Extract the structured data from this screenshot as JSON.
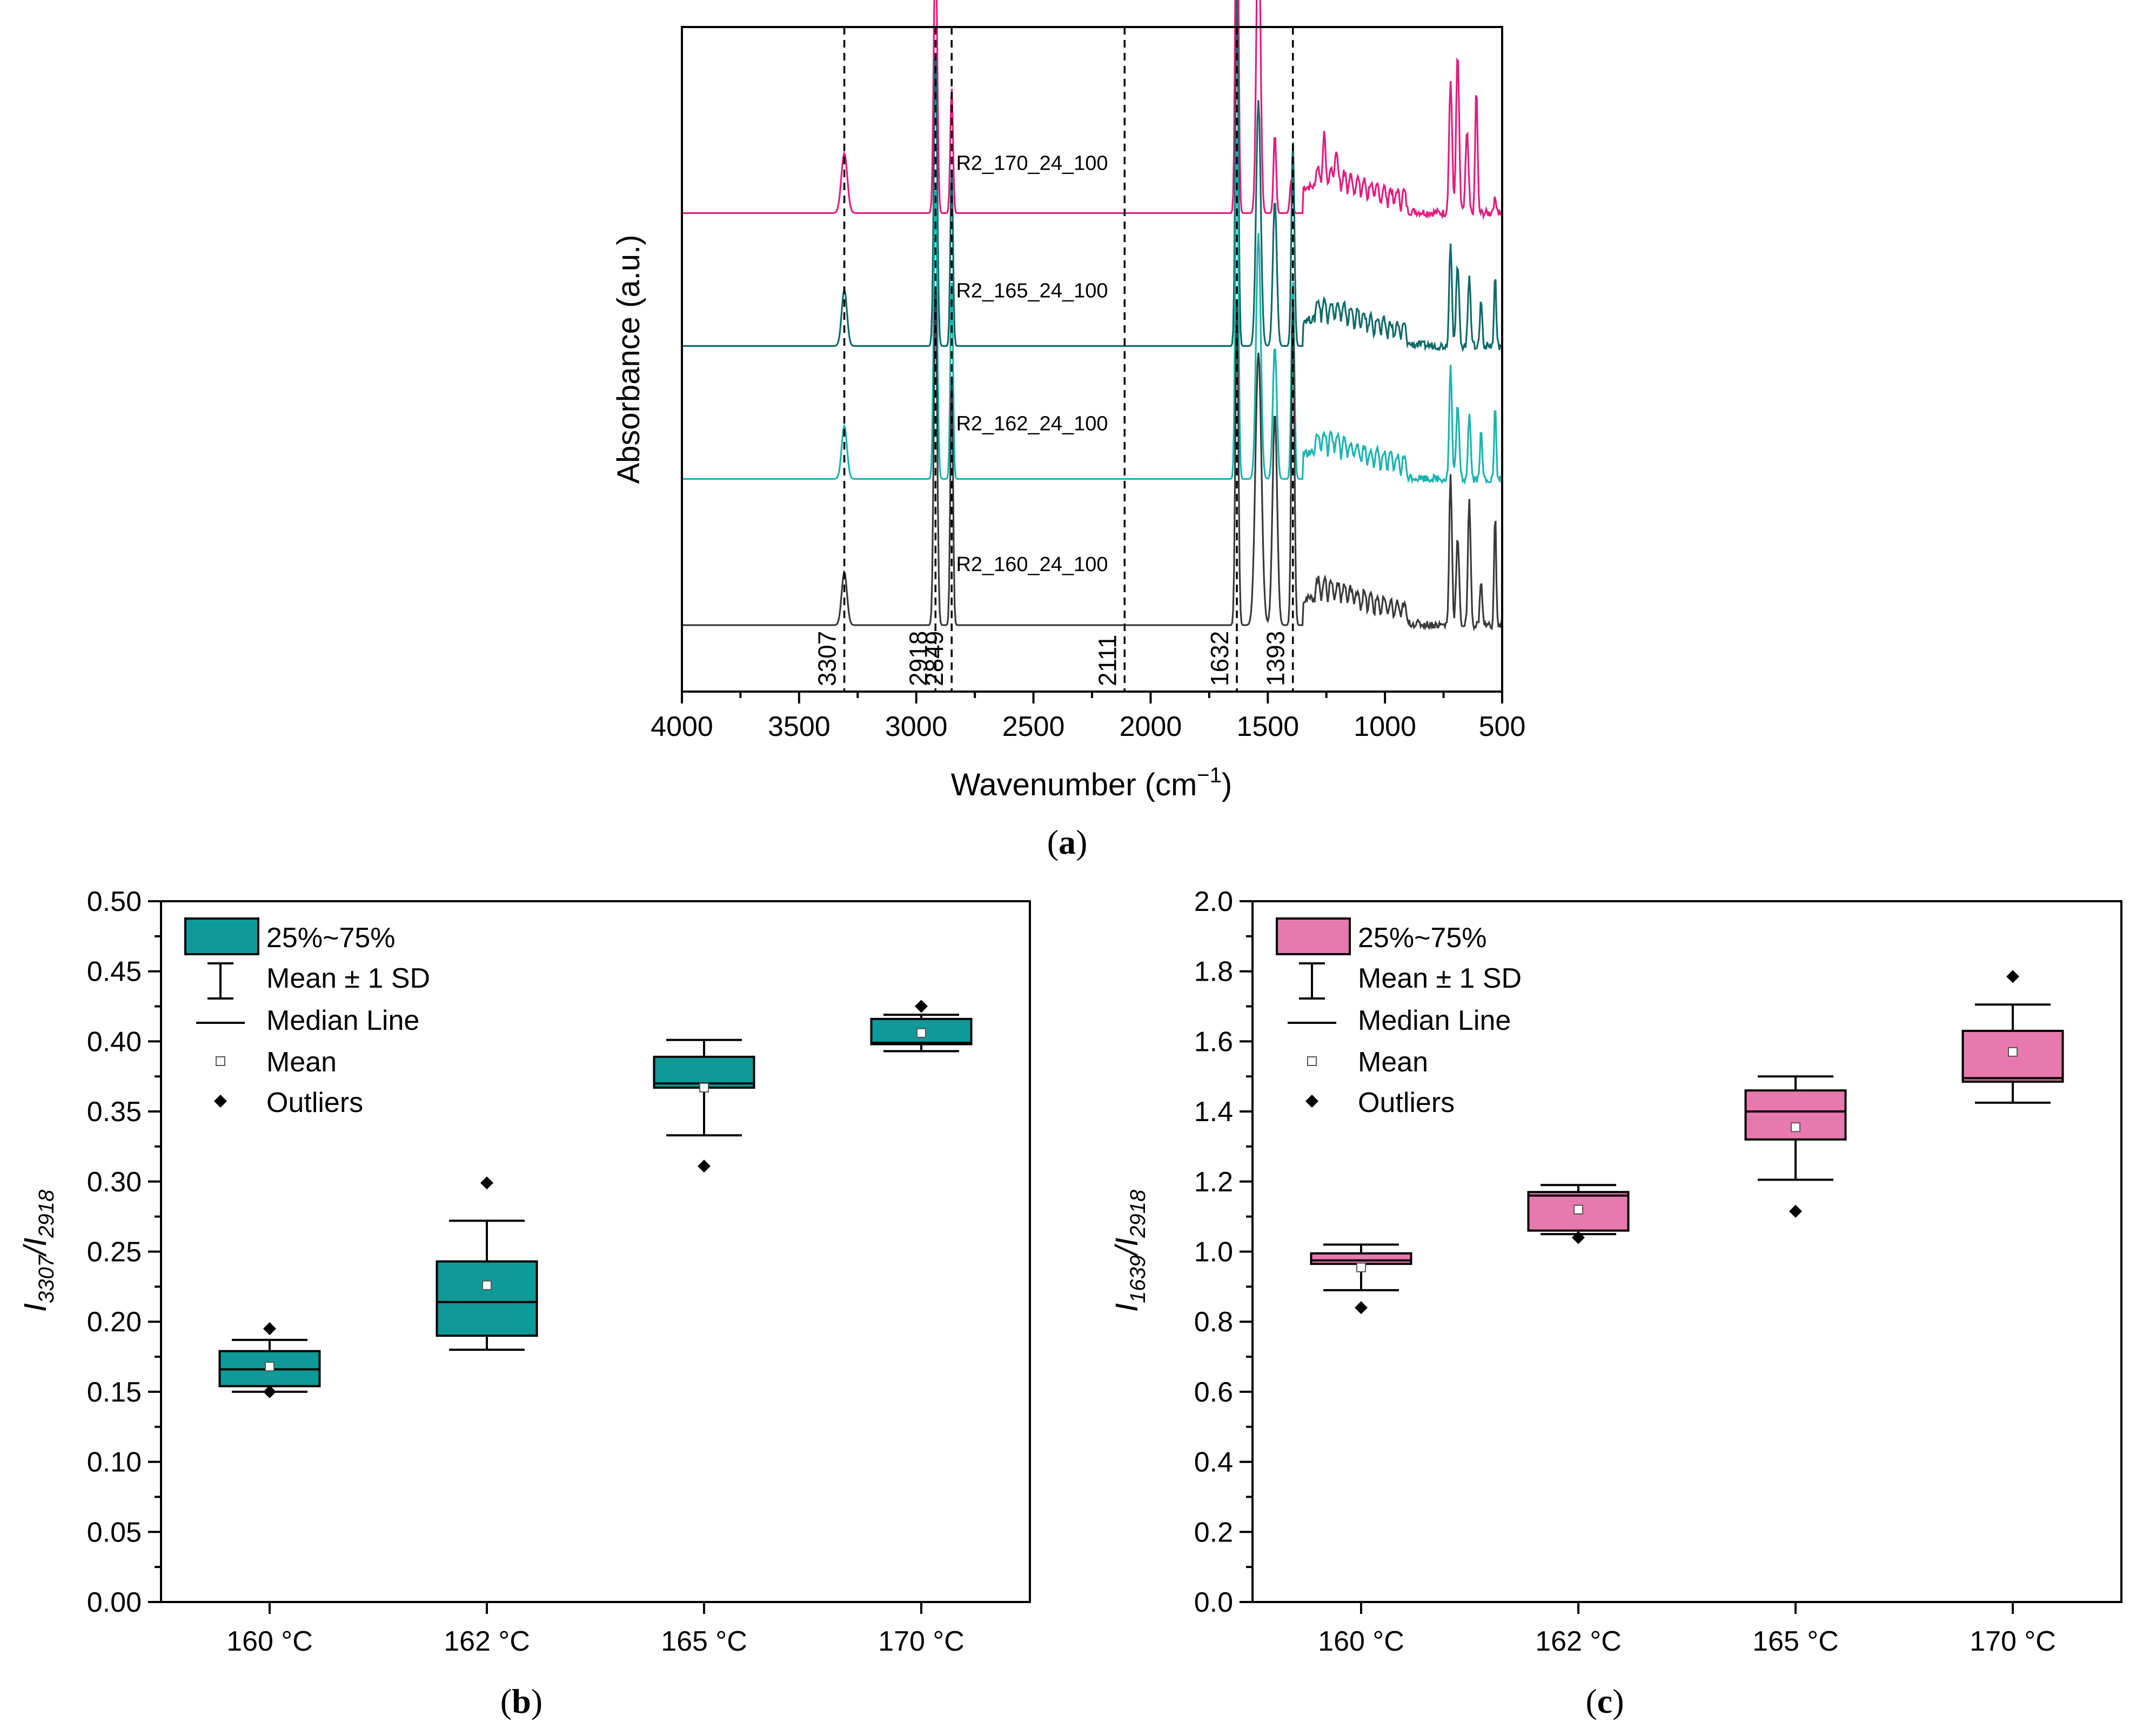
{
  "chart_data": [
    {
      "panel": "(a)",
      "panel_letter": "a",
      "type": "line",
      "title": "",
      "xlabel": "Wavenumber (cm",
      "xlabel_sup": "−1",
      "xlabel_close": ")",
      "ylabel": "Absorbance (a.u.)",
      "xlim": [
        4000,
        500
      ],
      "x_ticks": [
        "4000",
        "3500",
        "3000",
        "2500",
        "2000",
        "1500",
        "1000",
        "500"
      ],
      "x_tick_values": [
        4000,
        3500,
        3000,
        2500,
        2000,
        1500,
        1000,
        500
      ],
      "reference_lines": [
        3307,
        2918,
        2849,
        2111,
        1632,
        1393
      ],
      "reference_labels": [
        "3307",
        "2918",
        "2849",
        "2111",
        "1632",
        "1393"
      ],
      "series": [
        {
          "name": "R2_170_24_100",
          "color": "#E8197D",
          "baseline": 0.72,
          "peaks": [
            [
              3307,
              0.09,
              18
            ],
            [
              2918,
              0.43,
              10
            ],
            [
              2849,
              0.19,
              8
            ],
            [
              1632,
              0.6,
              9
            ],
            [
              1540,
              0.48,
              12
            ],
            [
              1470,
              0.12,
              8
            ],
            [
              1400,
              0.05,
              8
            ],
            [
              1260,
              0.05,
              8
            ],
            [
              1210,
              0.04,
              8
            ],
            [
              720,
              0.2,
              9
            ],
            [
              690,
              0.24,
              9
            ],
            [
              650,
              0.12,
              9
            ],
            [
              610,
              0.19,
              7
            ],
            [
              530,
              0.02,
              10
            ]
          ]
        },
        {
          "name": "R2_165_24_100",
          "color": "#0F6B69",
          "baseline": 0.52,
          "peaks": [
            [
              3307,
              0.085,
              16
            ],
            [
              2918,
              0.45,
              10
            ],
            [
              2849,
              0.27,
              8
            ],
            [
              1632,
              0.53,
              9
            ],
            [
              1540,
              0.37,
              14
            ],
            [
              1470,
              0.22,
              12
            ],
            [
              1393,
              0.31,
              9
            ],
            [
              720,
              0.16,
              8
            ],
            [
              690,
              0.12,
              9
            ],
            [
              640,
              0.11,
              8
            ],
            [
              590,
              0.07,
              7
            ],
            [
              530,
              0.11,
              6
            ]
          ]
        },
        {
          "name": "R2_162_24_100",
          "color": "#18B5B1",
          "baseline": 0.32,
          "peaks": [
            [
              3307,
              0.08,
              16
            ],
            [
              2918,
              0.45,
              10
            ],
            [
              2849,
              0.3,
              8
            ],
            [
              1632,
              0.52,
              9
            ],
            [
              1540,
              0.37,
              14
            ],
            [
              1470,
              0.2,
              12
            ],
            [
              1393,
              0.3,
              9
            ],
            [
              720,
              0.17,
              8
            ],
            [
              690,
              0.11,
              9
            ],
            [
              640,
              0.1,
              8
            ],
            [
              590,
              0.07,
              7
            ],
            [
              530,
              0.11,
              6
            ]
          ]
        },
        {
          "name": "R2_160_24_100",
          "color": "#3A3A3A",
          "baseline": 0.1,
          "peaks": [
            [
              3307,
              0.08,
              16
            ],
            [
              2918,
              0.52,
              10
            ],
            [
              2849,
              0.38,
              8
            ],
            [
              1632,
              0.49,
              9
            ],
            [
              1540,
              0.41,
              18
            ],
            [
              1470,
              0.32,
              14
            ],
            [
              1393,
              0.49,
              9
            ],
            [
              720,
              0.23,
              8
            ],
            [
              690,
              0.13,
              9
            ],
            [
              640,
              0.19,
              8
            ],
            [
              590,
              0.07,
              7
            ],
            [
              530,
              0.17,
              6
            ]
          ]
        }
      ]
    },
    {
      "panel": "(b)",
      "panel_letter": "b",
      "type": "box",
      "title": "",
      "xlabel": "",
      "ylabel_base": "I",
      "ylabel_sub1": "3307",
      "ylabel_sep": "/I",
      "ylabel_sub2": "2918",
      "color": "#0E9A98",
      "ylim": [
        0.0,
        0.5
      ],
      "y_ticks": [
        "0.00",
        "0.05",
        "0.10",
        "0.15",
        "0.20",
        "0.25",
        "0.30",
        "0.35",
        "0.40",
        "0.45",
        "0.50"
      ],
      "y_tick_values": [
        0.0,
        0.05,
        0.1,
        0.15,
        0.2,
        0.25,
        0.3,
        0.35,
        0.4,
        0.45,
        0.5
      ],
      "categories": [
        "160 °C",
        "162 °C",
        "165 °C",
        "170 °C"
      ],
      "boxes": [
        {
          "q1": 0.154,
          "median": 0.166,
          "q3": 0.179,
          "mean": 0.168,
          "sd_low": 0.15,
          "sd_high": 0.187,
          "outliers": [
            0.195,
            0.15
          ]
        },
        {
          "q1": 0.19,
          "median": 0.214,
          "q3": 0.243,
          "mean": 0.226,
          "sd_low": 0.18,
          "sd_high": 0.272,
          "outliers": [
            0.299
          ]
        },
        {
          "q1": 0.367,
          "median": 0.37,
          "q3": 0.389,
          "mean": 0.367,
          "sd_low": 0.333,
          "sd_high": 0.401,
          "outliers": [
            0.311
          ]
        },
        {
          "q1": 0.398,
          "median": 0.399,
          "q3": 0.416,
          "mean": 0.406,
          "sd_low": 0.393,
          "sd_high": 0.419,
          "outliers": [
            0.425
          ]
        }
      ],
      "legend": [
        "25%~75%",
        "Mean ± 1 SD",
        "Median Line",
        "Mean",
        "Outliers"
      ]
    },
    {
      "panel": "(c)",
      "panel_letter": "c",
      "type": "box",
      "title": "",
      "xlabel": "",
      "ylabel_base": "I",
      "ylabel_sub1": "1639",
      "ylabel_sep": "/I",
      "ylabel_sub2": "2918",
      "color": "#E879AE",
      "ylim": [
        0.0,
        2.0
      ],
      "y_ticks": [
        "0.0",
        "0.2",
        "0.4",
        "0.6",
        "0.8",
        "1.0",
        "1.2",
        "1.4",
        "1.6",
        "1.8",
        "2.0"
      ],
      "y_tick_values": [
        0.0,
        0.2,
        0.4,
        0.6,
        0.8,
        1.0,
        1.2,
        1.4,
        1.6,
        1.8,
        2.0
      ],
      "categories": [
        "160 °C",
        "162 °C",
        "165 °C",
        "170 °C"
      ],
      "boxes": [
        {
          "q1": 0.965,
          "median": 0.975,
          "q3": 0.995,
          "mean": 0.955,
          "sd_low": 0.89,
          "sd_high": 1.02,
          "outliers": [
            0.84
          ]
        },
        {
          "q1": 1.06,
          "median": 1.16,
          "q3": 1.17,
          "mean": 1.12,
          "sd_low": 1.05,
          "sd_high": 1.19,
          "outliers": [
            1.04
          ]
        },
        {
          "q1": 1.32,
          "median": 1.4,
          "q3": 1.46,
          "mean": 1.355,
          "sd_low": 1.205,
          "sd_high": 1.5,
          "outliers": [
            1.115
          ]
        },
        {
          "q1": 1.485,
          "median": 1.495,
          "q3": 1.63,
          "mean": 1.57,
          "sd_low": 1.425,
          "sd_high": 1.705,
          "outliers": [
            1.785
          ]
        }
      ],
      "legend": [
        "25%~75%",
        "Mean ± 1 SD",
        "Median Line",
        "Mean",
        "Outliers"
      ]
    }
  ]
}
